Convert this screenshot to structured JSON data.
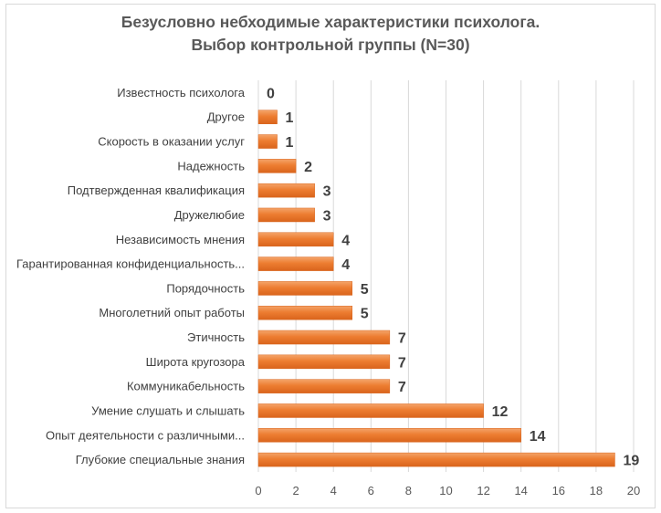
{
  "chart_data": {
    "type": "bar",
    "orientation": "horizontal",
    "title_lines": [
      "Безусловно небходимые характеристики психолога.",
      "Выбор контрольной группы (N=30)"
    ],
    "categories": [
      "Известность психолога",
      "Другое",
      "Скорость в оказании услуг",
      "Надежность",
      "Подтвержденная квалификация",
      "Дружелюбие",
      "Независимость мнения",
      "Гарантированная конфиденциальность...",
      "Порядочность",
      "Многолетний опыт работы",
      "Этичность",
      "Широта кругозора",
      "Коммуникабельность",
      "Умение слушать и слышать",
      "Опыт деятельности с различными...",
      "Глубокие специальные знания"
    ],
    "values": [
      0,
      1,
      1,
      2,
      3,
      3,
      4,
      4,
      5,
      5,
      7,
      7,
      7,
      12,
      14,
      19
    ],
    "xlim": [
      0,
      20
    ],
    "xticks": [
      0,
      2,
      4,
      6,
      8,
      10,
      12,
      14,
      16,
      18,
      20
    ],
    "grid": "vertical",
    "legend": "none",
    "colors": {
      "bar_fill": "#ed7d31",
      "bar_gradient_light": "#f4a46a",
      "bar_gradient_dark": "#d9641c",
      "gridline": "#d9d9d9",
      "text": "#595959"
    }
  }
}
